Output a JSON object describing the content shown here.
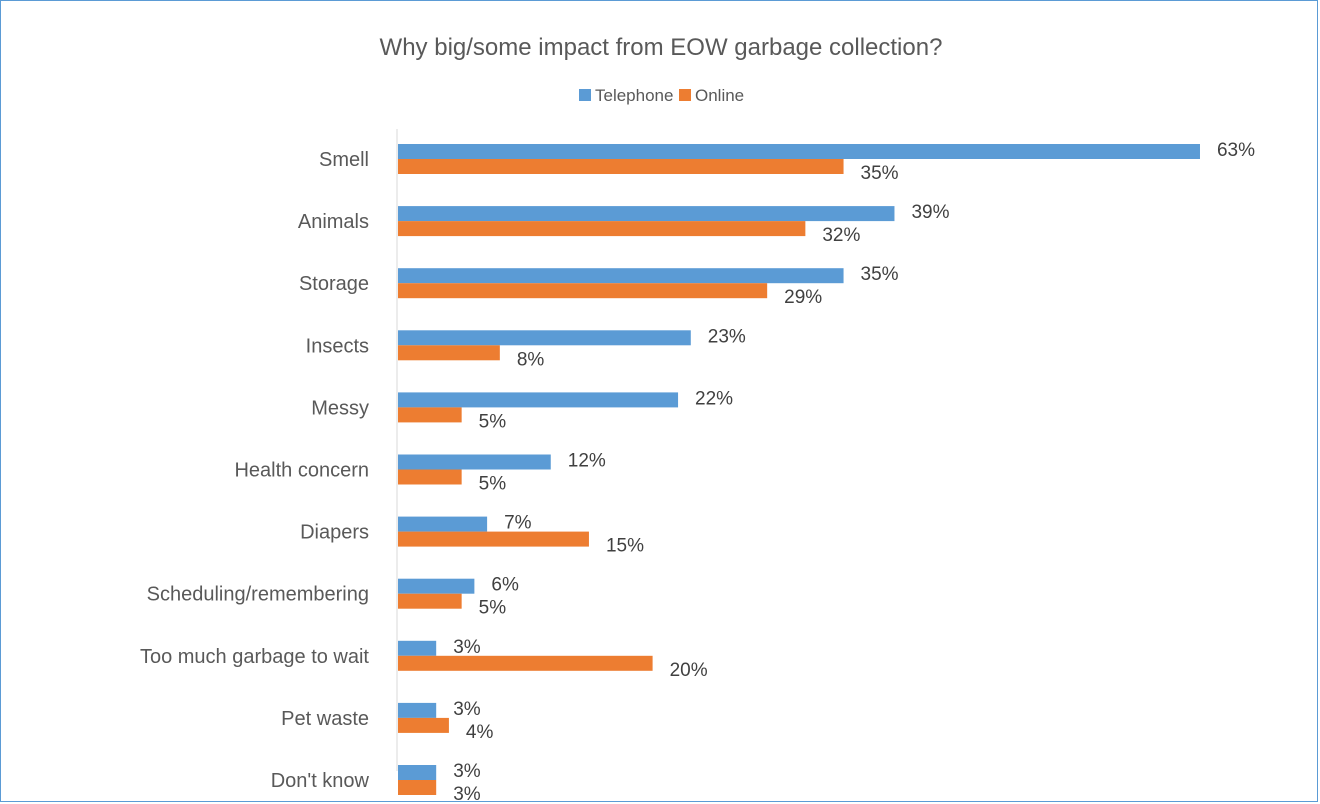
{
  "chart_data": {
    "type": "bar",
    "orientation": "horizontal",
    "title": "Why big/some impact from EOW garbage collection?",
    "legend_position": "top",
    "grid": false,
    "xlim": [
      0,
      65
    ],
    "categories": [
      "Smell",
      "Animals",
      "Storage",
      "Insects",
      "Messy",
      "Health concern",
      "Diapers",
      "Scheduling/remembering",
      "Too much garbage to wait",
      "Pet waste",
      "Don't know"
    ],
    "series": [
      {
        "name": "Telephone",
        "color": "#5b9bd5",
        "values": [
          63,
          39,
          35,
          23,
          22,
          12,
          7,
          6,
          3,
          3,
          3
        ],
        "labels": [
          "63%",
          "39%",
          "35%",
          "23%",
          "22%",
          "12%",
          "7%",
          "6%",
          "3%",
          "3%",
          "3%"
        ]
      },
      {
        "name": "Online",
        "color": "#ed7d31",
        "values": [
          35,
          32,
          29,
          8,
          5,
          5,
          15,
          5,
          20,
          4,
          3
        ],
        "labels": [
          "35%",
          "32%",
          "29%",
          "8%",
          "5%",
          "5%",
          "15%",
          "5%",
          "20%",
          "4%",
          "3%"
        ]
      }
    ]
  }
}
